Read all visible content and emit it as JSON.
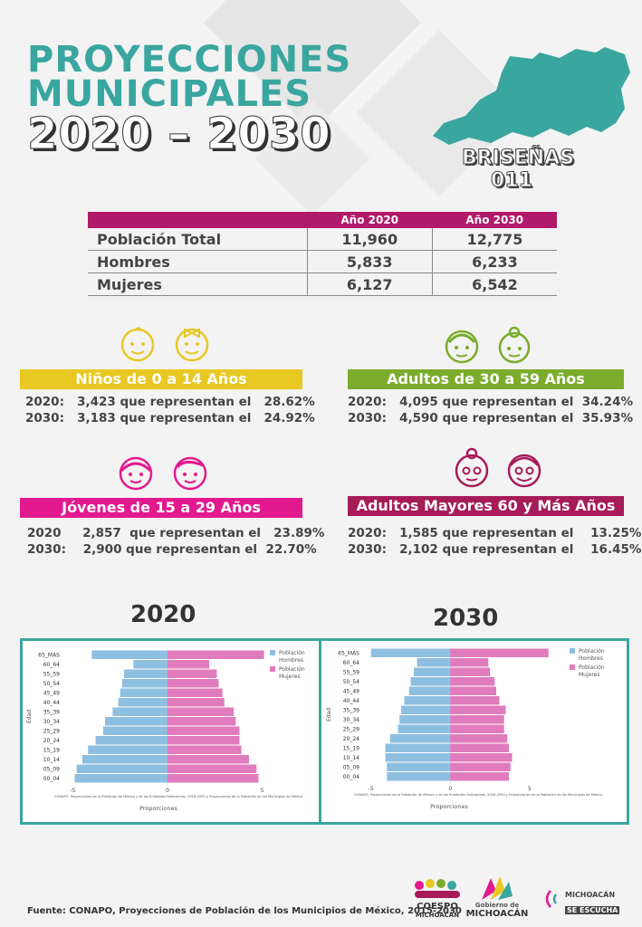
{
  "header": {
    "title_line1": "PROYECCIONES",
    "title_line2": "MUNICIPALES",
    "title_line3": "2020 – 2030",
    "municipality_name": "BRISEÑAS",
    "municipality_code": "011"
  },
  "population_table": {
    "col_2020": "Año 2020",
    "col_2030": "Año 2030",
    "rows": [
      {
        "label": "Población Total",
        "v2020": "11,960",
        "v2030": "12,775"
      },
      {
        "label": "Hombres",
        "v2020": "5,833",
        "v2030": "6,233"
      },
      {
        "label": "Mujeres",
        "v2020": "6,127",
        "v2030": "6,542"
      }
    ]
  },
  "categories": {
    "ninos": {
      "title": "Niños de 0 a 14 Años",
      "color": "#e8c823",
      "line_2020": "2020:   3,423 que representan el   28.62%",
      "line_2030": "2030:   3,183 que representan el   24.92%"
    },
    "adultos": {
      "title": "Adultos de 30 a 59 Años",
      "color": "#7bac2c",
      "line_2020": "2020:   4,095 que representan el  34.24%",
      "line_2030": "2030:   4,590 que representan el  35.93%"
    },
    "jovenes": {
      "title": "Jóvenes de 15 a 29 Años",
      "color": "#e2198f",
      "line_2020": "2020     2,857  que representan el   23.89%",
      "line_2030": "2030:    2,900 que representan el  22.70%"
    },
    "mayores": {
      "title": "Adultos Mayores  60 y Más Años",
      "color": "#a61b58",
      "line_2020": "2020:   1,585 que representan el    13.25%",
      "line_2030": "2030:   2,102 que representan el    16.45%"
    }
  },
  "charts_header": {
    "left_year": "2020",
    "right_year": "2030"
  },
  "chart_data": [
    {
      "type": "bar",
      "title": "2020",
      "orientation": "horizontal-pyramid",
      "categories": [
        "65_MAS",
        "60_64",
        "55_59",
        "50_54",
        "45_49",
        "40_44",
        "35_39",
        "30_34",
        "25_29",
        "20_24",
        "15_19",
        "10_14",
        "05_09",
        "00_04"
      ],
      "series": [
        {
          "name": "Población Hombres",
          "color": "#8fbfe0",
          "values": [
            -4.0,
            -1.8,
            -2.3,
            -2.4,
            -2.5,
            -2.6,
            -2.9,
            -3.3,
            -3.4,
            -3.8,
            -4.2,
            -4.5,
            -4.8,
            -4.9
          ]
        },
        {
          "name": "Población Mujeres",
          "color": "#e07bbd",
          "values": [
            5.1,
            2.2,
            2.6,
            2.7,
            2.9,
            3.0,
            3.5,
            3.6,
            3.8,
            3.8,
            3.9,
            4.3,
            4.7,
            4.8
          ]
        }
      ],
      "xlabel": "Proporciones",
      "ylabel": "Edad",
      "xlim": [
        -5.5,
        5.5
      ],
      "xticks": [
        "-5",
        "0",
        "5"
      ],
      "source_note": "CONAPO. Proyecciones de la Población de México y de las Entidades Federativas, 2016-2050 y Proyecciones de la Población de los Municipios de México"
    },
    {
      "type": "bar",
      "title": "2030",
      "orientation": "horizontal-pyramid",
      "categories": [
        "65_MAS",
        "60_64",
        "55_59",
        "50_54",
        "45_49",
        "40_44",
        "35_39",
        "30_34",
        "25_29",
        "20_24",
        "15_19",
        "10_14",
        "05_09",
        "00_04"
      ],
      "series": [
        {
          "name": "Población Hombres",
          "color": "#8fbfe0",
          "values": [
            -5.0,
            -2.1,
            -2.3,
            -2.5,
            -2.6,
            -2.9,
            -3.1,
            -3.2,
            -3.3,
            -3.8,
            -4.1,
            -4.1,
            -4.0,
            -4.0
          ]
        },
        {
          "name": "Población Mujeres",
          "color": "#e07bbd",
          "values": [
            6.2,
            2.4,
            2.5,
            2.8,
            2.9,
            3.1,
            3.5,
            3.4,
            3.4,
            3.6,
            3.7,
            3.9,
            3.8,
            3.7
          ]
        }
      ],
      "xlabel": "Proporciones",
      "ylabel": "Edad",
      "xlim": [
        -5.5,
        6.5
      ],
      "xticks": [
        "-5",
        "0",
        "5"
      ],
      "source_note": "CONAPO. Proyecciones de la Población de México y de las Entidades Federativas, 2016-2050 y Proyecciones de la Población de los Municipios de México"
    }
  ],
  "footer": {
    "source": "Fuente: CONAPO, Proyecciones de Población de los Municipios de México, 2015-2030",
    "logo1_line1": "COESPO",
    "logo1_line2": "MICHOACÁN",
    "logo2_line1": "Gobierno de",
    "logo2_line2": "MICHOACÁN",
    "logo3_line1": "MICHOACÁN",
    "logo3_line2": "SE ESCUCHA"
  }
}
